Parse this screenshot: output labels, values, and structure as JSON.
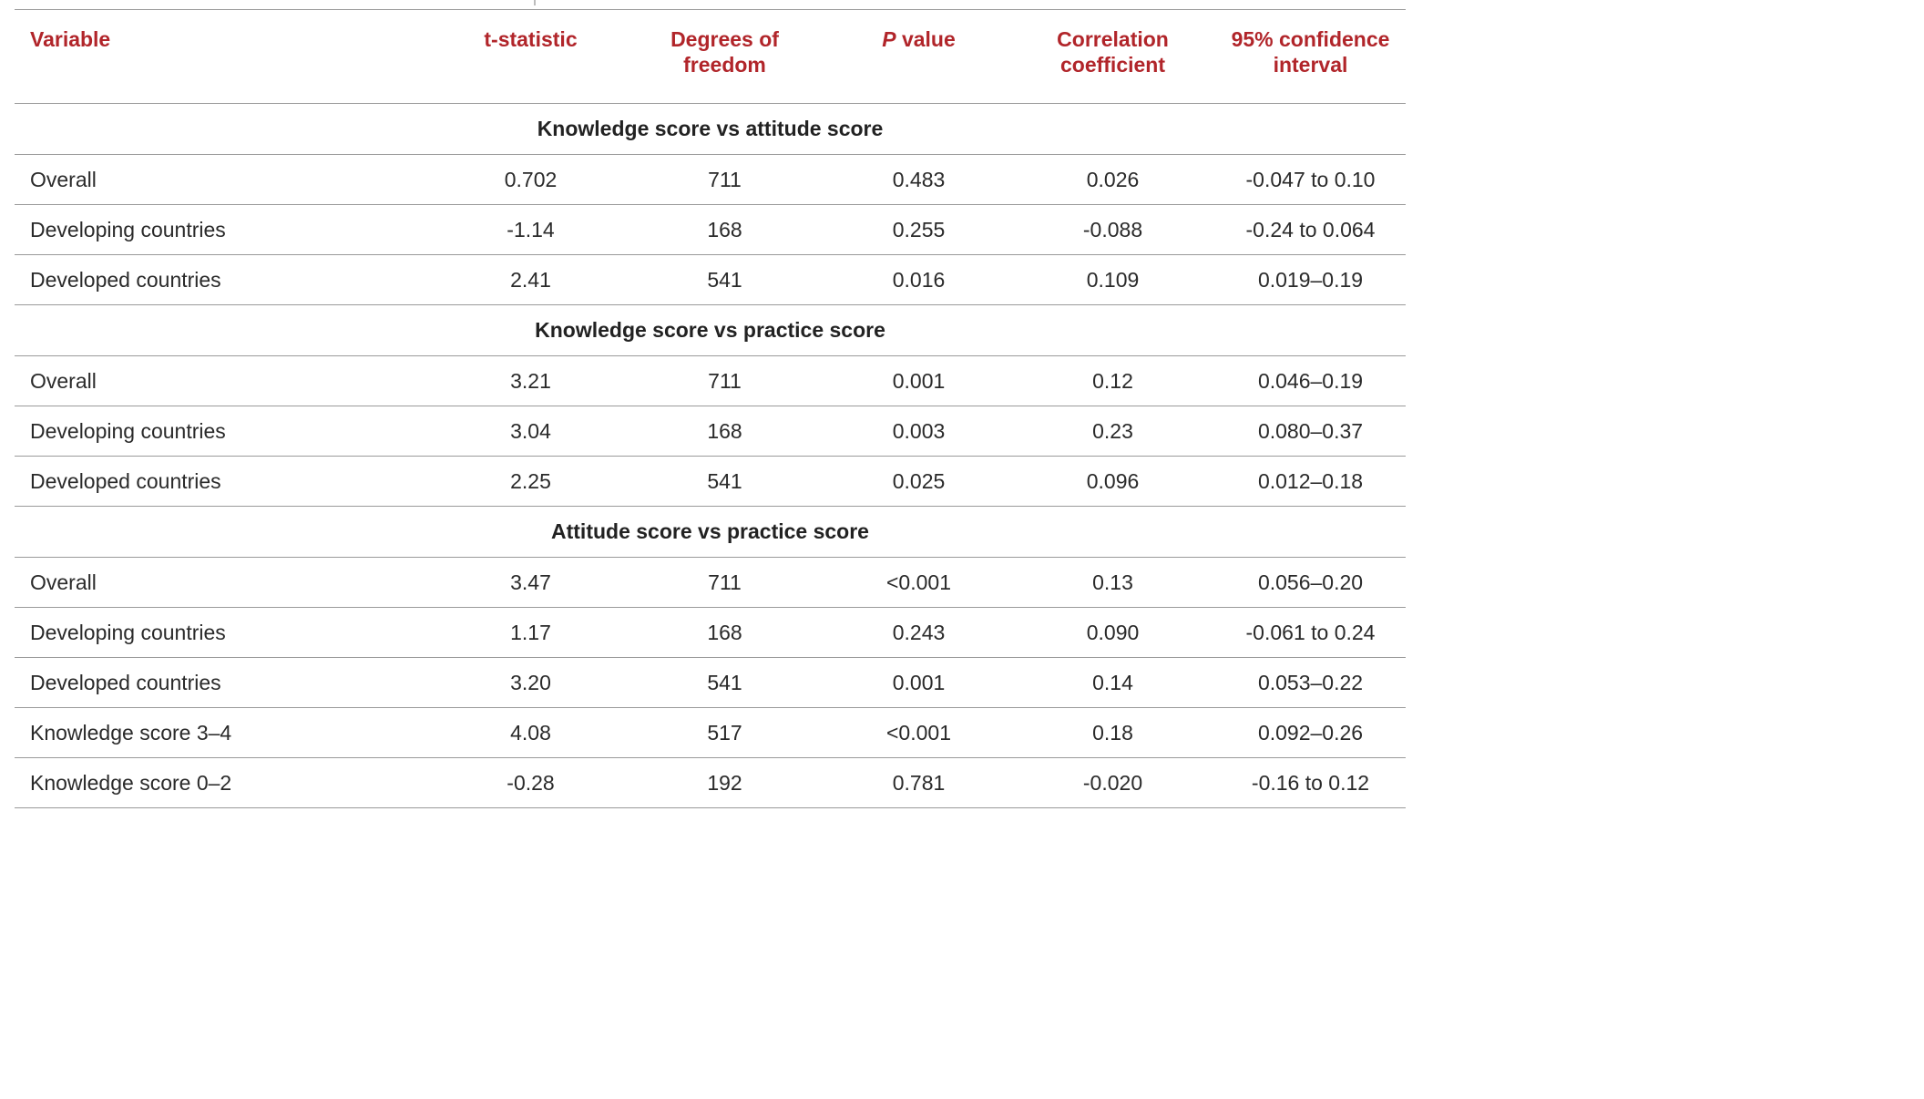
{
  "table": {
    "headers": {
      "variable": "Variable",
      "t_statistic": "t-statistic",
      "degrees_of_freedom_line1": "Degrees of",
      "degrees_of_freedom_line2": "freedom",
      "p_value_italic": "P",
      "p_value_rest": " value",
      "correlation_line1": "Correlation",
      "correlation_line2": "coefficient",
      "ci_line1": "95% confidence",
      "ci_line2": "interval"
    },
    "sections": [
      {
        "title": "Knowledge score vs attitude score",
        "rows": [
          {
            "variable": "Overall",
            "t": "0.702",
            "df": "711",
            "p": "0.483",
            "r": "0.026",
            "ci": "-0.047 to 0.10"
          },
          {
            "variable": "Developing countries",
            "t": "-1.14",
            "df": "168",
            "p": "0.255",
            "r": "-0.088",
            "ci": "-0.24 to 0.064"
          },
          {
            "variable": "Developed countries",
            "t": "2.41",
            "df": "541",
            "p": "0.016",
            "r": "0.109",
            "ci": "0.019–0.19"
          }
        ]
      },
      {
        "title": "Knowledge score vs practice score",
        "rows": [
          {
            "variable": "Overall",
            "t": "3.21",
            "df": "711",
            "p": "0.001",
            "r": "0.12",
            "ci": "0.046–0.19"
          },
          {
            "variable": "Developing countries",
            "t": "3.04",
            "df": "168",
            "p": "0.003",
            "r": "0.23",
            "ci": "0.080–0.37"
          },
          {
            "variable": "Developed countries",
            "t": "2.25",
            "df": "541",
            "p": "0.025",
            "r": "0.096",
            "ci": "0.012–0.18"
          }
        ]
      },
      {
        "title": "Attitude score vs practice score",
        "rows": [
          {
            "variable": "Overall",
            "t": "3.47",
            "df": "711",
            "p": "<0.001",
            "r": "0.13",
            "ci": "0.056–0.20"
          },
          {
            "variable": "Developing countries",
            "t": "1.17",
            "df": "168",
            "p": "0.243",
            "r": "0.090",
            "ci": "-0.061 to 0.24"
          },
          {
            "variable": "Developed countries",
            "t": "3.20",
            "df": "541",
            "p": "0.001",
            "r": "0.14",
            "ci": "0.053–0.22"
          },
          {
            "variable": "Knowledge score 3–4",
            "t": "4.08",
            "df": "517",
            "p": "<0.001",
            "r": "0.18",
            "ci": "0.092–0.26"
          },
          {
            "variable": "Knowledge score 0–2",
            "t": "-0.28",
            "df": "192",
            "p": "0.781",
            "r": "-0.020",
            "ci": "-0.16 to 0.12"
          }
        ]
      }
    ]
  },
  "colors": {
    "header_text": "#b1252a",
    "rule": "#9a9a9a",
    "body_text": "#2a2a2a"
  }
}
